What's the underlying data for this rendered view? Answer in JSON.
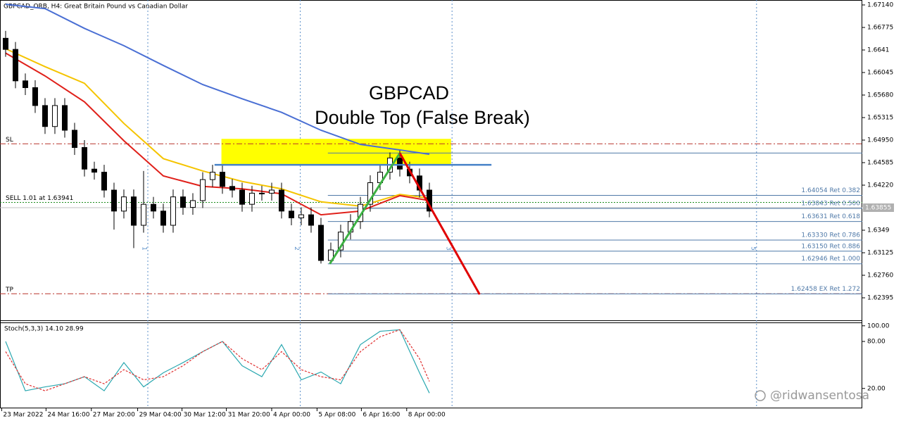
{
  "header": "GBPCAD_ORB, H4:  Great Britain Pound vs Canadian Dollar",
  "watermark": "@ridwansentosa",
  "chart_data": [
    {
      "type": "candlestick",
      "title": "GBPCAD",
      "subtitle": "Double Top (False Break)",
      "xlim": [
        -0.57,
        86.93
      ],
      "ylim": [
        1.6203,
        1.6722
      ],
      "yticks": [
        {
          "value": 1.6714,
          "label": "1.67140"
        },
        1.66775,
        1.6641,
        1.66045,
        {
          "value": 1.6568,
          "label": "1.65680"
        },
        1.65315,
        {
          "value": 1.6495,
          "label": "1.64950"
        },
        1.64585,
        {
          "value": 1.6422,
          "label": "1.64220"
        },
        1.6349,
        1.63125,
        {
          "value": 1.6276,
          "label": "1.62760"
        },
        1.62395
      ],
      "xticks": [
        {
          "value": -0.4,
          "label": "23 Mar 2022"
        },
        {
          "value": 4.1,
          "label": "24 Mar 16:00"
        },
        {
          "value": 8.7,
          "label": "27 Mar 20:00"
        },
        {
          "value": 13.4,
          "label": "29 Mar 04:00"
        },
        {
          "value": 17.9,
          "label": "30 Mar 12:00"
        },
        {
          "value": 22.4,
          "label": "31 Mar 20:00"
        },
        {
          "value": 27,
          "label": "4 Apr 00:00"
        },
        {
          "value": 31.6,
          "label": "5 Apr 08:00"
        },
        {
          "value": 36.1,
          "label": "6 Apr 16:00"
        },
        {
          "value": 40.7,
          "label": "8 Apr 00:00"
        }
      ],
      "open": [
        1.666,
        1.6642,
        1.6591,
        1.658,
        1.6551,
        1.6517,
        1.6551,
        1.6511,
        1.6483,
        1.6448,
        1.6443,
        1.6414,
        1.638,
        1.6403,
        1.6357,
        1.6391,
        1.638,
        1.6357,
        1.6403,
        1.6386,
        1.6397,
        1.6431,
        1.6443,
        1.642,
        1.6414,
        1.6391,
        1.6409,
        1.6409,
        1.6414,
        1.638,
        1.6369,
        1.6374,
        1.6357,
        1.63,
        1.6317,
        1.6346,
        1.6363,
        1.6391,
        1.6426,
        1.6443,
        1.6466,
        1.6448,
        1.6437,
        1.6414
      ],
      "high": [
        1.6672,
        1.6654,
        1.6603,
        1.6592,
        1.6563,
        1.6563,
        1.6563,
        1.6523,
        1.6495,
        1.646,
        1.6455,
        1.6426,
        1.6415,
        1.6415,
        1.6445,
        1.6403,
        1.6392,
        1.6415,
        1.6415,
        1.6409,
        1.6443,
        1.6455,
        1.6455,
        1.6432,
        1.6426,
        1.6421,
        1.6421,
        1.6426,
        1.6426,
        1.6392,
        1.6386,
        1.6386,
        1.6369,
        1.6329,
        1.6358,
        1.6375,
        1.6403,
        1.6438,
        1.6455,
        1.6475,
        1.6478,
        1.646,
        1.6449,
        1.6426
      ],
      "low": [
        1.663,
        1.6579,
        1.6568,
        1.6539,
        1.6505,
        1.6505,
        1.6499,
        1.6471,
        1.6436,
        1.6431,
        1.6402,
        1.635,
        1.6368,
        1.632,
        1.6345,
        1.6368,
        1.6345,
        1.6345,
        1.6374,
        1.6374,
        1.6385,
        1.6419,
        1.6408,
        1.6402,
        1.6379,
        1.6379,
        1.6397,
        1.6397,
        1.6368,
        1.6357,
        1.6357,
        1.6345,
        1.6295,
        1.6295,
        1.6305,
        1.6334,
        1.6351,
        1.6379,
        1.6414,
        1.6431,
        1.6436,
        1.6425,
        1.6402,
        1.637
      ],
      "close": [
        1.6642,
        1.6591,
        1.658,
        1.6551,
        1.6517,
        1.6551,
        1.6511,
        1.6483,
        1.6448,
        1.6443,
        1.6414,
        1.638,
        1.6403,
        1.6357,
        1.6391,
        1.638,
        1.6357,
        1.6403,
        1.6386,
        1.6397,
        1.6431,
        1.6443,
        1.642,
        1.6414,
        1.6391,
        1.6409,
        1.6409,
        1.6414,
        1.638,
        1.6369,
        1.6374,
        1.6357,
        1.63,
        1.6317,
        1.6346,
        1.6363,
        1.6391,
        1.6426,
        1.6443,
        1.6466,
        1.6448,
        1.6437,
        1.6414,
        1.638
      ],
      "up_color": "#ffffff",
      "down_color": "#000000",
      "moving_averages": {
        "x": [
          0,
          4,
          8,
          12,
          16,
          20,
          24,
          28,
          32,
          36,
          40,
          43
        ],
        "series": [
          {
            "color": "#4a6fd4",
            "values": [
              1.6715,
              1.6708,
              1.6676,
              1.6648,
              1.6616,
              1.6585,
              1.6562,
              1.654,
              1.6511,
              1.6488,
              1.6479,
              1.6472
            ]
          },
          {
            "color": "#f5c400",
            "values": [
              1.6643,
              1.6614,
              1.6587,
              1.6522,
              1.6465,
              1.6445,
              1.6428,
              1.6416,
              1.6395,
              1.6388,
              1.6407,
              1.6401
            ]
          },
          {
            "color": "#e0201a",
            "values": [
              1.6636,
              1.6599,
              1.6557,
              1.6494,
              1.6437,
              1.642,
              1.6416,
              1.6408,
              1.6374,
              1.638,
              1.6405,
              1.6397
            ]
          }
        ]
      },
      "current_price": 1.63855,
      "levels": [
        {
          "label": "SL",
          "value": 1.6489,
          "color": "#b8342a",
          "style": "dash-dot"
        },
        {
          "label": "TP",
          "value": 1.6246,
          "color": "#b8342a",
          "style": "dash-dot"
        },
        {
          "label": "SELL 1.01 at 1.63941",
          "value": 1.63941,
          "color": "#1a8a1a",
          "style": "dotted"
        }
      ],
      "fibonacci": {
        "start": 32.7,
        "color": "#4f79a8",
        "levels": [
          {
            "value": 1.6474
          },
          {
            "value": 1.64054,
            "label": "1.64054 Ret 0.382"
          },
          {
            "value": 1.63843,
            "label": "1.63843 Ret 0.500"
          },
          {
            "value": 1.63631,
            "label": "1.63631 Ret 0.618"
          },
          {
            "value": 1.6333,
            "label": "1.63330 Ret 0.786"
          },
          {
            "value": 1.6315,
            "label": "1.63150 Ret 0.886"
          },
          {
            "value": 1.62946,
            "label": "1.62946 Ret 1.000"
          },
          {
            "value": 1.62458,
            "label": "1.62458 EX Ret 1.272"
          }
        ]
      },
      "zone": {
        "start": 21.9,
        "end": 45.2,
        "low": 1.6456,
        "high": 1.6497,
        "color": "#ffff00"
      },
      "resistance": {
        "start": 21.2,
        "end": 49.3,
        "value": 1.6455,
        "color": "#4682c8"
      },
      "trend_lines": [
        {
          "x": [
            32.9,
            40
          ],
          "values": [
            1.62946,
            1.6474
          ],
          "color": "#3cb043"
        },
        {
          "x": [
            40,
            48.1
          ],
          "values": [
            1.6474,
            1.6245
          ],
          "color": "#e00000"
        }
      ],
      "markers": [
        {
          "x": 14.43,
          "label": "1"
        },
        {
          "x": 29.9,
          "label": "2"
        },
        {
          "x": 45.3,
          "label": "3"
        },
        {
          "x": 76.2,
          "label": "5"
        }
      ]
    },
    {
      "type": "line",
      "title": "Stoch(5,3,3) 14.10 28.99",
      "xlim": [
        -0.57,
        86.93
      ],
      "ylim": [
        -3.6,
        104.3
      ],
      "yticks": [
        {
          "value": 100,
          "label": "100.00"
        },
        {
          "value": 80,
          "label": "80.00"
        },
        {
          "value": 20,
          "label": "20.00"
        }
      ],
      "x": [
        0,
        2,
        4,
        6,
        8,
        10,
        12,
        14,
        16,
        18,
        20,
        22,
        24,
        26,
        28,
        30,
        32,
        34,
        36,
        38,
        40,
        42,
        43
      ],
      "series": [
        {
          "color": "#2aa8b0",
          "dashed": false,
          "values": [
            80,
            17,
            22,
            26,
            35,
            17,
            53,
            22,
            40,
            53,
            67,
            80,
            49,
            35,
            76,
            31,
            41,
            26,
            76,
            93,
            95,
            40,
            14.1
          ]
        },
        {
          "color": "#e03030",
          "dashed": true,
          "values": [
            67,
            26,
            17,
            26,
            35,
            26,
            44,
            31,
            35,
            49,
            67,
            80,
            58,
            44,
            67,
            44,
            35,
            31,
            67,
            86,
            95,
            58,
            28.99
          ]
        }
      ]
    }
  ]
}
